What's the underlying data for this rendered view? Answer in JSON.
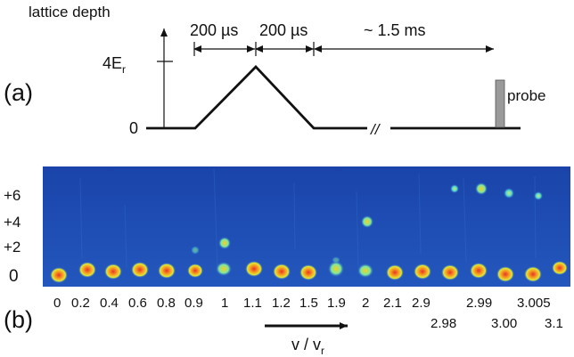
{
  "panel_a": {
    "label": "(a)",
    "ylabel": "lattice depth",
    "y_tick_top": "4E",
    "y_tick_top_sub": "r",
    "y_tick_zero": "0",
    "interval_1": "200 µs",
    "interval_2": "200 µs",
    "interval_3": "~ 1.5 ms",
    "probe_label": "probe",
    "break_mark": "//"
  },
  "panel_b": {
    "label": "(b)",
    "row_labels": [
      "+6",
      "+4",
      "+2",
      "0"
    ],
    "x_labels_top": [
      "0",
      "0.2",
      "0.4",
      "0.6",
      "0.8",
      "0.9",
      "1",
      "1.1",
      "1.2",
      "1.5",
      "1.9",
      "2",
      "2.1",
      "2.9",
      "2.99",
      "3.005"
    ],
    "x_labels_bottom": [
      "2.98",
      "3.00",
      "3.1"
    ],
    "axis_label": "v / v",
    "axis_label_sub": "r"
  },
  "colors": {
    "pulse_line": "#111111",
    "probe_bar": "#9a9a9a",
    "image_bg": "#1f4fb5",
    "atom_hot": "#e8332a",
    "atom_warm": "#f2d21e",
    "atom_cool": "#6fe0c0"
  }
}
